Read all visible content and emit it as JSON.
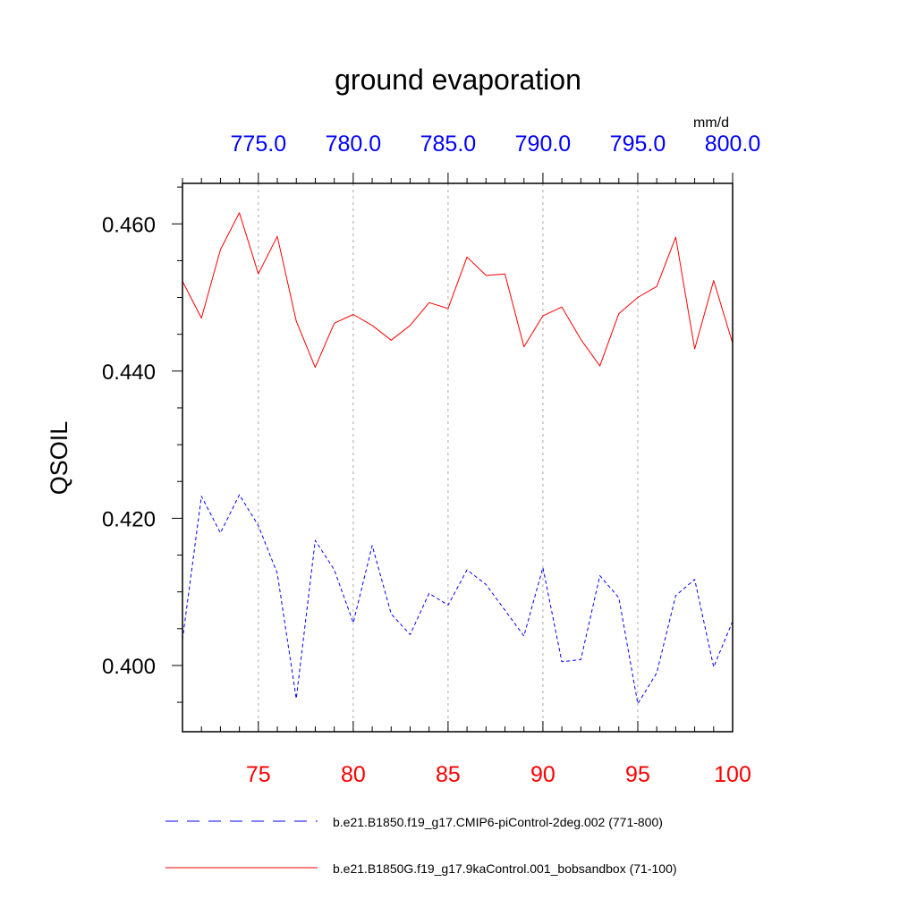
{
  "chart_data": {
    "type": "line",
    "title": "ground evaporation",
    "ylabel": "QSOIL",
    "units": "mm/d",
    "xlim": [
      71,
      100
    ],
    "x2lim": [
      771,
      800
    ],
    "ylim": [
      0.391,
      0.4655
    ],
    "yticks": [
      0.4,
      0.42,
      0.44,
      0.46
    ],
    "ytick_labels": [
      "0.400",
      "0.420",
      "0.440",
      "0.460"
    ],
    "yminor_step": 0.005,
    "xticks_bottom": [
      75,
      80,
      85,
      90,
      95,
      100
    ],
    "xtick_labels_bottom": [
      "75",
      "80",
      "85",
      "90",
      "95",
      "100"
    ],
    "xticks_top": [
      775,
      780,
      785,
      790,
      795,
      800
    ],
    "xtick_labels_top": [
      "775.0",
      "780.0",
      "785.0",
      "790.0",
      "795.0",
      "800.0"
    ],
    "grid_x": true,
    "x": [
      71,
      72,
      73,
      74,
      75,
      76,
      77,
      78,
      79,
      80,
      81,
      82,
      83,
      84,
      85,
      86,
      87,
      88,
      89,
      90,
      91,
      92,
      93,
      94,
      95,
      96,
      97,
      98,
      99,
      100
    ],
    "series": [
      {
        "name": "b.e21.B1850.f19_g17.CMIP6-piControl-2deg.002 (771-800)",
        "axis": "top",
        "color": "#0000ff",
        "dash": "dashed",
        "values": [
          0.4035,
          0.423,
          0.418,
          0.4232,
          0.419,
          0.4125,
          0.3955,
          0.417,
          0.413,
          0.4058,
          0.4163,
          0.407,
          0.4042,
          0.4098,
          0.4082,
          0.413,
          0.411,
          0.4075,
          0.404,
          0.4133,
          0.4005,
          0.4008,
          0.4122,
          0.4092,
          0.3948,
          0.399,
          0.4095,
          0.4117,
          0.3998,
          0.406
        ]
      },
      {
        "name": "b.e21.B1850G.f19_g17.9kaControl.001_bobsandbox (71-100)",
        "axis": "bottom",
        "color": "#ff0000",
        "dash": "solid",
        "values": [
          0.4522,
          0.4472,
          0.4565,
          0.4615,
          0.4532,
          0.4583,
          0.4468,
          0.4405,
          0.4465,
          0.4477,
          0.4462,
          0.4442,
          0.4462,
          0.4493,
          0.4485,
          0.4555,
          0.453,
          0.4532,
          0.4433,
          0.4475,
          0.4487,
          0.4443,
          0.4407,
          0.4478,
          0.45,
          0.4515,
          0.4582,
          0.443,
          0.4523,
          0.4438
        ]
      }
    ],
    "legend_position": "bottom"
  }
}
